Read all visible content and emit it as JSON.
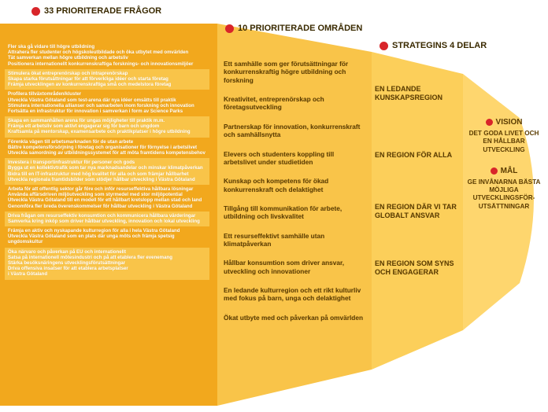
{
  "colors": {
    "dot": "#d8252a",
    "band_dark": "#f2a81d",
    "band_light": "#f9c449",
    "col2": "#f9c449",
    "col3": "#fccf5a",
    "col4": "#fed66e",
    "text_dark": "#5b3c00",
    "text_white": "#ffffff"
  },
  "headers": {
    "h1": "33 PRIORITERADE FRÅGOR",
    "h2": "10 PRIORITERADE OMRÅDEN",
    "h3": "STRATEGINS 4 DELAR"
  },
  "col1_groups": [
    [
      "Fler ska gå vidare till högre utbildning",
      "Attrahera fler studenter och högskoleutbildade och öka utbytet med omvärlden",
      "Tät samverkan mellan högre utbildning och arbetsliv",
      "Positionera internationellt konkurrenskraftiga forsknings- och innovationsmiljöer"
    ],
    [
      "Stimulera ökat entreprenörskap och intraprenörskap",
      "Skapa starka förutsättningar för att förverkliga idéer och starta företag",
      "Främja utvecklingen av konkurrenskraftiga små och medelstora företag"
    ],
    [
      "Profilera tillväxtområden/kluster",
      "Utveckla Västra Götaland som test-arena där nya idéer omsätts till praktik",
      "Stimulera internationella allianser och samarbeten inom forskning och innovation",
      "Fortsätta en infrastruktur för innovation i samverkan i form av Science Parks"
    ],
    [
      "Skapa en sammanhållen arena för ungas möjligheter till praktik m.m.",
      "Främja ett arbetsliv som aktivt engagerar sig för barn och ungdom",
      "Kraftsamla på mentorskap, examensarbete och praktikplatser i högre utbildning"
    ],
    [
      "Förenkla vägen till arbetsmarknaden för de utan arbete",
      "Bättre kompetensförsörjning i företag och organisationer för förnyelse i arbetslivet",
      "Utveckla samordning av utbildningssystemet för att möta framtidens kompetensbehov"
    ],
    [
      "Investera i transportinfrastruktur för personer och gods",
      "Bygga ut en kollektivtrafik som tar nya marknadsandelar och minskar klimatpåverkan",
      "Bidra till en IT-infrastruktur med hög kvalitet för alla och som främjar hållbarhet",
      "Utveckla regionala framtidsbilder som stödjer hållbar utveckling i Västra Götaland"
    ],
    [
      "Arbeta för att offentlig sektor går före och inför resurseffektiva hållbara lösningar",
      "Använda affärsdriven miljöutveckling som styrmedel med stor miljöpotential",
      "Utveckla Västra Götaland till en modell för ett hållbart kretslopp mellan stad och land",
      "Genomföra fler breda överenskommelser för hållbar utveckling i Västra Götaland"
    ],
    [
      "Driva frågan om resurseffektiv konsumtion och kommunicera hållbara värderingar",
      "Samverka kring inköp som driver hållbar utveckling, innovation och lokal utveckling"
    ],
    [
      "Främja en aktiv och nyskapande kulturregion för alla i hela Västra Götaland",
      "Utveckla Västra Götaland som en plats där unga möts och främja spetsig ungdomskultur"
    ],
    [
      "Öka närvaro och påverkan på EU och internationellt",
      "Satsa på internationell mötesindustri och på att etablera fler evenemang",
      "Stärka besöksnäringens utvecklingsförutsättningar",
      "Driva offensiva insatser för att etablera arbetsplatser",
      "i Västra Götaland"
    ]
  ],
  "col2_items": [
    "Ett samhälle som ger förutsättningar för konkurrenskraftig högre utbildning och forskning",
    "Kreativitet, entreprenörskap och företagsutveckling",
    "Partnerskap för innovation, konkurrenskraft och samhällsnytta",
    "Elevers och studenters koppling till arbetslivet under studietiden",
    "Kunskap och kompetens för ökad konkurrenskraft och delaktighet",
    "Tillgång till kommunikation för arbete, utbildning och livskvalitet",
    "Ett resurseffektivt samhälle utan klimatpåverkan",
    "Hållbar konsumtion som driver ansvar, utveckling och innovationer",
    "En ledande kulturregion och ett rikt kulturliv med fokus på barn, unga och delaktighet",
    "Ökat utbyte med och påverkan på omvärlden"
  ],
  "col3_items": [
    "EN LEDANDE KUNSKAPSREGION",
    "EN REGION FÖR ALLA",
    "EN REGION DÄR VI TAR GLOBALT ANSVAR",
    "EN REGION SOM SYNS OCH ENGAGERAR"
  ],
  "col4": {
    "vision_label": "VISION",
    "vision_text": "DET GODA LIVET OCH EN HÅLLBAR UTVECKLING",
    "mal_label": "MÅL",
    "mal_text": "GE INVÅNARNA BÄSTA MÖJLIGA UTVECKLINGSFÖR- UTSÄTTNINGAR"
  }
}
